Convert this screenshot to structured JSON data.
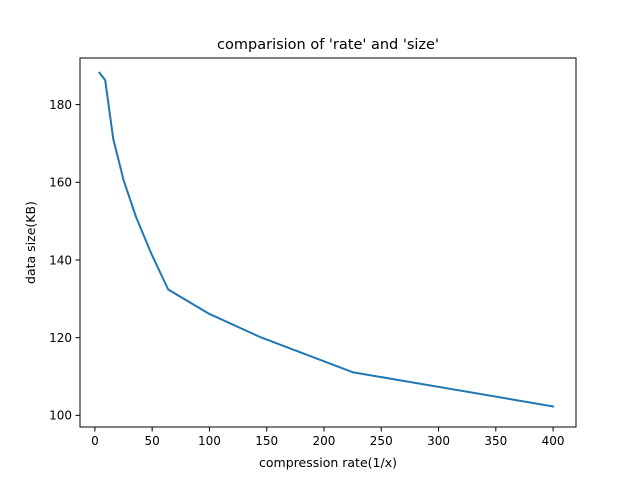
{
  "chart_data": {
    "type": "line",
    "title": "comparision of 'rate' and 'size'",
    "xlabel": "compression rate(1/x)",
    "ylabel": "data size(KB)",
    "xlim": [
      -13,
      420
    ],
    "ylim": [
      97,
      192
    ],
    "xticks": [
      0,
      50,
      100,
      150,
      200,
      250,
      300,
      350,
      400
    ],
    "yticks": [
      100,
      120,
      140,
      160,
      180
    ],
    "grid": false,
    "series": [
      {
        "color": "#1f77b4",
        "x": [
          4,
          9,
          16,
          25,
          36,
          49,
          64,
          100,
          144,
          225,
          400
        ],
        "y": [
          188.2,
          186.3,
          171.2,
          160.6,
          151.0,
          141.8,
          132.4,
          126.1,
          120.2,
          111.1,
          102.3
        ]
      }
    ]
  }
}
